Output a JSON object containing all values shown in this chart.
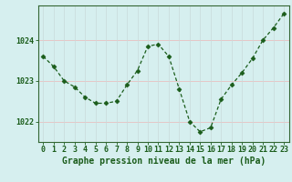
{
  "hours": [
    0,
    1,
    2,
    3,
    4,
    5,
    6,
    7,
    8,
    9,
    10,
    11,
    12,
    13,
    14,
    15,
    16,
    17,
    18,
    19,
    20,
    21,
    22,
    23
  ],
  "pressure": [
    1023.6,
    1023.35,
    1023.0,
    1022.85,
    1022.6,
    1022.45,
    1022.45,
    1022.5,
    1022.9,
    1023.25,
    1023.85,
    1023.9,
    1023.6,
    1022.8,
    1022.0,
    1021.75,
    1021.85,
    1022.55,
    1022.9,
    1023.2,
    1023.55,
    1024.0,
    1024.3,
    1024.65
  ],
  "line_color": "#1a5c1a",
  "marker": "D",
  "marker_size": 2.5,
  "line_width": 0.9,
  "bg_color": "#d6efef",
  "plot_bg_color": "#d6efef",
  "grid_color_h": "#e8c0c0",
  "grid_color_v": "#c8dada",
  "xlabel": "Graphe pression niveau de la mer (hPa)",
  "ylim": [
    1021.5,
    1024.85
  ],
  "yticks": [
    1022,
    1023,
    1024
  ],
  "xlim": [
    -0.5,
    23.5
  ],
  "tick_fontsize": 6.0,
  "xlabel_fontsize": 7.0,
  "axis_color": "#1a5c1a",
  "spine_color": "#336633"
}
